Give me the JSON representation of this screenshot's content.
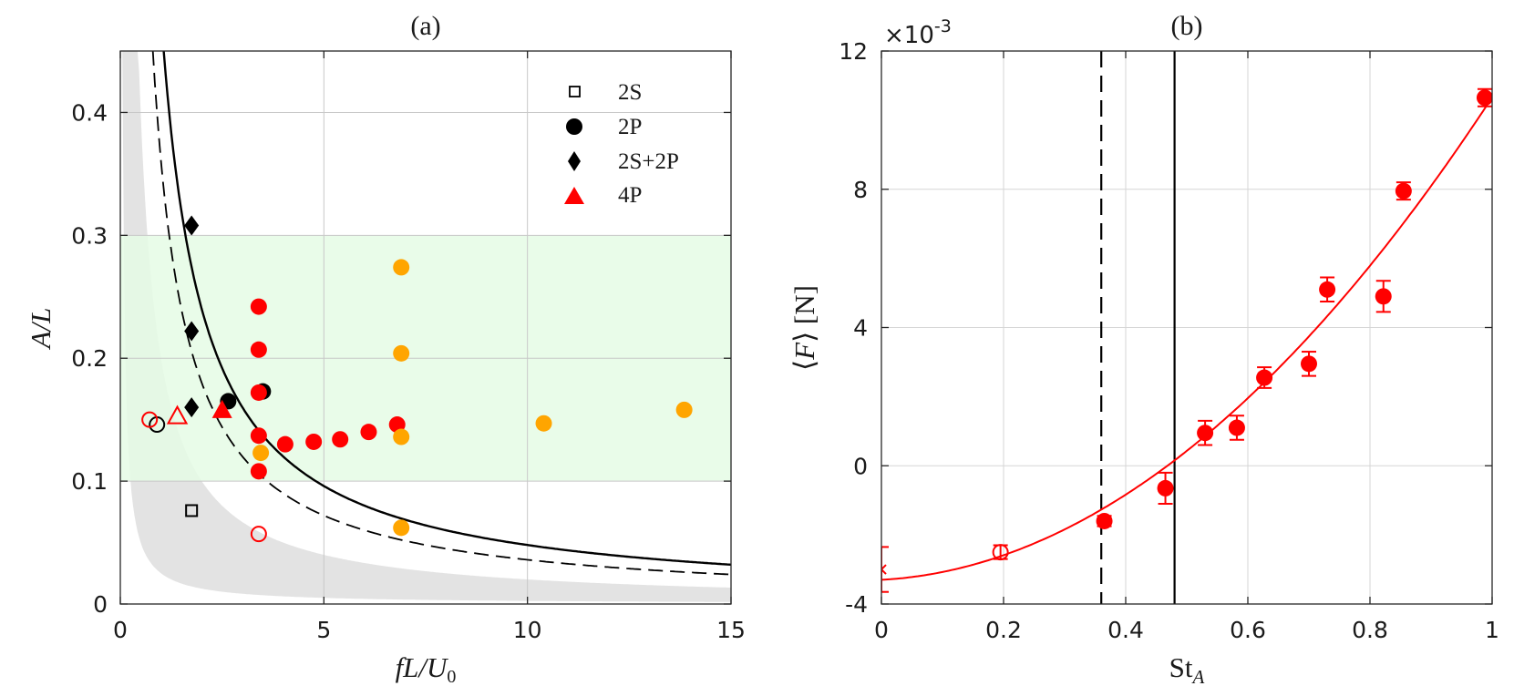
{
  "chart_data": [
    {
      "panel": "(a)",
      "type": "scatter",
      "title": "(a)",
      "xlabel": "fL/U0",
      "ylabel": "A/L",
      "xlim": [
        0,
        15
      ],
      "ylim": [
        0,
        0.45
      ],
      "xticks": [
        0,
        5,
        10,
        15
      ],
      "yticks": [
        0,
        0.1,
        0.2,
        0.3,
        0.4
      ],
      "xtick_labels": [
        "0",
        "5",
        "10",
        "15"
      ],
      "ytick_labels": [
        "0",
        "0.1",
        "0.2",
        "0.3",
        "0.4"
      ],
      "grid": true,
      "legend_position": "top-right",
      "legend": [
        {
          "label": "2S",
          "marker": "open-square",
          "color": "#000000"
        },
        {
          "label": "2P",
          "marker": "filled-circle",
          "color": "#000000"
        },
        {
          "label": "2S+2P",
          "marker": "filled-diamond",
          "color": "#000000"
        },
        {
          "label": "4P",
          "marker": "filled-triangle",
          "color": "#ff0000"
        }
      ],
      "shaded_regions": [
        {
          "name": "gray-band",
          "color": "#e3e3e3",
          "description": "between curves A/L = 0.025/(fL/U0) and A/L = 0.2/(fL/U0)",
          "k_low": 0.025,
          "k_high": 0.2,
          "cap": 0.45
        },
        {
          "name": "green-band",
          "color": "#e5fbe5",
          "y_range": [
            0.1,
            0.3
          ]
        }
      ],
      "curves": [
        {
          "name": "solid-curve",
          "style": "solid",
          "color": "#000000",
          "equation": "A/L = 0.48/(fL/U0)",
          "k": 0.48
        },
        {
          "name": "dashed-curve",
          "style": "dashed",
          "color": "#000000",
          "equation": "A/L = 0.36/(fL/U0)",
          "k": 0.36
        }
      ],
      "series": [
        {
          "name": "2S",
          "marker": "open-square",
          "color": "#000000",
          "points": [
            [
              1.75,
              0.076
            ]
          ]
        },
        {
          "name": "2P",
          "marker": "filled-circle",
          "color": "#000000",
          "points": [
            [
              2.65,
              0.165
            ],
            [
              3.5,
              0.173
            ]
          ]
        },
        {
          "name": "2P-open",
          "marker": "open-circle",
          "color": "#000000",
          "points": [
            [
              0.9,
              0.146
            ]
          ]
        },
        {
          "name": "2S+2P",
          "marker": "filled-diamond",
          "color": "#000000",
          "points": [
            [
              1.75,
              0.308
            ],
            [
              1.75,
              0.222
            ],
            [
              1.75,
              0.16
            ]
          ]
        },
        {
          "name": "4P",
          "marker": "filled-triangle",
          "color": "#ff0000",
          "points": [
            [
              2.5,
              0.158
            ]
          ]
        },
        {
          "name": "4P-open",
          "marker": "open-triangle",
          "color": "#ff0000",
          "points": [
            [
              1.4,
              0.153
            ]
          ]
        },
        {
          "name": "red-filled",
          "marker": "filled-circle",
          "color": "#ff0000",
          "points": [
            [
              3.4,
              0.242
            ],
            [
              3.4,
              0.207
            ],
            [
              3.4,
              0.172
            ],
            [
              3.4,
              0.137
            ],
            [
              3.4,
              0.108
            ],
            [
              4.05,
              0.13
            ],
            [
              4.75,
              0.132
            ],
            [
              5.4,
              0.134
            ],
            [
              6.1,
              0.14
            ],
            [
              6.8,
              0.146
            ]
          ]
        },
        {
          "name": "red-open",
          "marker": "open-circle",
          "color": "#ff0000",
          "points": [
            [
              0.72,
              0.15
            ],
            [
              3.4,
              0.057
            ]
          ]
        },
        {
          "name": "orange-filled",
          "marker": "filled-circle",
          "color": "#ffa500",
          "points": [
            [
              6.9,
              0.274
            ],
            [
              6.9,
              0.204
            ],
            [
              6.9,
              0.136
            ],
            [
              6.9,
              0.062
            ],
            [
              3.45,
              0.123
            ],
            [
              10.4,
              0.147
            ],
            [
              13.85,
              0.158
            ]
          ]
        }
      ]
    },
    {
      "panel": "(b)",
      "type": "scatter",
      "title": "(b)",
      "xlabel": "StA",
      "ylabel": "<F> [N]",
      "exponent_label": "×10-3",
      "xlim": [
        0,
        1
      ],
      "ylim": [
        -4,
        12
      ],
      "xticks": [
        0,
        0.2,
        0.4,
        0.6,
        0.8,
        1
      ],
      "yticks": [
        -4,
        0,
        4,
        8,
        12
      ],
      "xtick_labels": [
        "0",
        "0.2",
        "0.4",
        "0.6",
        "0.8",
        "1"
      ],
      "ytick_labels": [
        "-4",
        "0",
        "4",
        "8",
        "12"
      ],
      "grid": true,
      "vertical_lines": [
        {
          "name": "dashed-vline",
          "x": 0.36,
          "style": "dashed",
          "color": "#000000"
        },
        {
          "name": "solid-vline",
          "x": 0.48,
          "style": "solid",
          "color": "#000000"
        }
      ],
      "fit": {
        "name": "quadratic-fit",
        "color": "#ff0000",
        "equation": "F = -3.3 + 0.96*St + 13.0*St^2 (×10^-3)",
        "coeffs": [
          -3.3,
          0.96,
          13.0
        ]
      },
      "series": [
        {
          "name": "cross",
          "marker": "cross",
          "color": "#ff0000",
          "points": [
            {
              "x": 0.0,
              "y": -3.0,
              "err": 0.65
            }
          ]
        },
        {
          "name": "open",
          "marker": "open-circle",
          "color": "#ff0000",
          "points": [
            {
              "x": 0.195,
              "y": -2.5,
              "err": 0.2
            }
          ]
        },
        {
          "name": "filled",
          "marker": "filled-circle",
          "color": "#ff0000",
          "points": [
            {
              "x": 0.365,
              "y": -1.6,
              "err": 0.15
            },
            {
              "x": 0.465,
              "y": -0.65,
              "err": 0.45
            },
            {
              "x": 0.53,
              "y": 0.95,
              "err": 0.35
            },
            {
              "x": 0.582,
              "y": 1.1,
              "err": 0.35
            },
            {
              "x": 0.627,
              "y": 2.55,
              "err": 0.3
            },
            {
              "x": 0.7,
              "y": 2.95,
              "err": 0.35
            },
            {
              "x": 0.73,
              "y": 5.1,
              "err": 0.35
            },
            {
              "x": 0.822,
              "y": 4.9,
              "err": 0.45
            },
            {
              "x": 0.855,
              "y": 7.95,
              "err": 0.25
            },
            {
              "x": 0.988,
              "y": 10.65,
              "err": 0.25
            }
          ]
        }
      ]
    }
  ]
}
